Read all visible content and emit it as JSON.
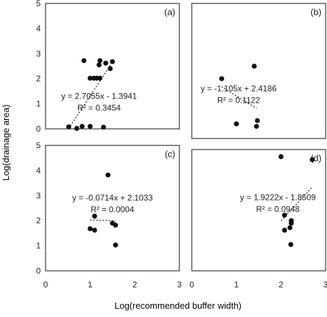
{
  "figure": {
    "ylabel": "Log(drainage area)",
    "xlabel": "Log(recommended buffer width)"
  },
  "chart_data": [
    {
      "type": "scatter",
      "panel_label": "(a)",
      "xlim": [
        0,
        3
      ],
      "ylim": [
        0,
        5
      ],
      "x_ticks": [
        0,
        1,
        2,
        3
      ],
      "y_ticks": [
        0,
        1,
        2,
        3,
        4,
        5
      ],
      "x_tick_labels": [],
      "y_tick_labels": [
        "0",
        "1",
        "2",
        "3",
        "4",
        "5"
      ],
      "points": [
        {
          "x": 0.52,
          "y": 0.08
        },
        {
          "x": 0.7,
          "y": 0.02
        },
        {
          "x": 0.82,
          "y": 0.1
        },
        {
          "x": 1.0,
          "y": 0.1
        },
        {
          "x": 1.3,
          "y": 0.07
        },
        {
          "x": 0.86,
          "y": 2.72
        },
        {
          "x": 1.0,
          "y": 2.02
        },
        {
          "x": 1.08,
          "y": 2.02
        },
        {
          "x": 1.15,
          "y": 2.02
        },
        {
          "x": 1.22,
          "y": 2.02
        },
        {
          "x": 1.2,
          "y": 2.55
        },
        {
          "x": 1.22,
          "y": 2.72
        },
        {
          "x": 1.35,
          "y": 2.62
        },
        {
          "x": 1.45,
          "y": 2.4
        },
        {
          "x": 1.5,
          "y": 2.68
        }
      ],
      "trendline": {
        "x_range": [
          0.52,
          1.5
        ]
      },
      "equation": "y = 2.7055x - 1.3941",
      "r_squared": "R² = 0.3454",
      "annotation_pos": [
        1.2,
        1.2
      ]
    },
    {
      "type": "scatter",
      "panel_label": "(b)",
      "xlim": [
        0,
        3
      ],
      "ylim": [
        0,
        5
      ],
      "x_ticks": [
        0,
        1,
        2,
        3
      ],
      "y_ticks": [
        0,
        1,
        2,
        3,
        4,
        5
      ],
      "x_tick_labels": [],
      "y_tick_labels": [],
      "points": [
        {
          "x": 0.67,
          "y": 2.0
        },
        {
          "x": 1.4,
          "y": 2.5
        },
        {
          "x": 1.0,
          "y": 0.2
        },
        {
          "x": 1.47,
          "y": 0.33
        },
        {
          "x": 1.45,
          "y": 0.1
        }
      ],
      "trendline": {
        "x_range": [
          0.67,
          1.45
        ]
      },
      "equation": "y = -1.105x + 2.4186",
      "r_squared": "R² = 0.1122",
      "annotation_pos": [
        1.05,
        1.5
      ]
    },
    {
      "type": "scatter",
      "panel_label": "(c)",
      "xlim": [
        0,
        3
      ],
      "ylim": [
        0,
        5
      ],
      "x_ticks": [
        0,
        1,
        2,
        3
      ],
      "y_ticks": [
        0,
        1,
        2,
        3,
        4,
        5
      ],
      "x_tick_labels": [
        "0",
        "1",
        "2",
        "3"
      ],
      "y_tick_labels": [
        "0",
        "1",
        "2",
        "3",
        "4",
        "5"
      ],
      "points": [
        {
          "x": 1.4,
          "y": 3.82
        },
        {
          "x": 1.1,
          "y": 2.18
        },
        {
          "x": 1.0,
          "y": 1.68
        },
        {
          "x": 1.1,
          "y": 1.62
        },
        {
          "x": 1.5,
          "y": 1.9
        },
        {
          "x": 1.57,
          "y": 1.82
        },
        {
          "x": 1.57,
          "y": 1.03
        }
      ],
      "trendline": {
        "x_range": [
          1.0,
          1.57
        ]
      },
      "equation": "y = -0.0714x + 2.1033",
      "r_squared": "R² = 0.0004",
      "annotation_pos": [
        1.5,
        2.8
      ]
    },
    {
      "type": "scatter",
      "panel_label": "(d)",
      "xlim": [
        0,
        3
      ],
      "ylim": [
        0,
        5
      ],
      "x_ticks": [
        0,
        1,
        2,
        3
      ],
      "y_ticks": [
        0,
        1,
        2,
        3,
        4,
        5
      ],
      "x_tick_labels": [
        "0",
        "1",
        "2",
        "3"
      ],
      "y_tick_labels": [],
      "points": [
        {
          "x": 2.0,
          "y": 4.55
        },
        {
          "x": 2.7,
          "y": 4.43
        },
        {
          "x": 2.08,
          "y": 2.22
        },
        {
          "x": 2.23,
          "y": 2.0
        },
        {
          "x": 2.23,
          "y": 1.9
        },
        {
          "x": 2.2,
          "y": 1.72
        },
        {
          "x": 2.08,
          "y": 1.62
        },
        {
          "x": 2.22,
          "y": 1.05
        }
      ],
      "trendline": {
        "x_range": [
          2.0,
          2.7
        ]
      },
      "equation": "y = 1.9222x - 1.8509",
      "r_squared": "R² = 0.0948",
      "annotation_pos": [
        1.93,
        2.82
      ]
    }
  ]
}
